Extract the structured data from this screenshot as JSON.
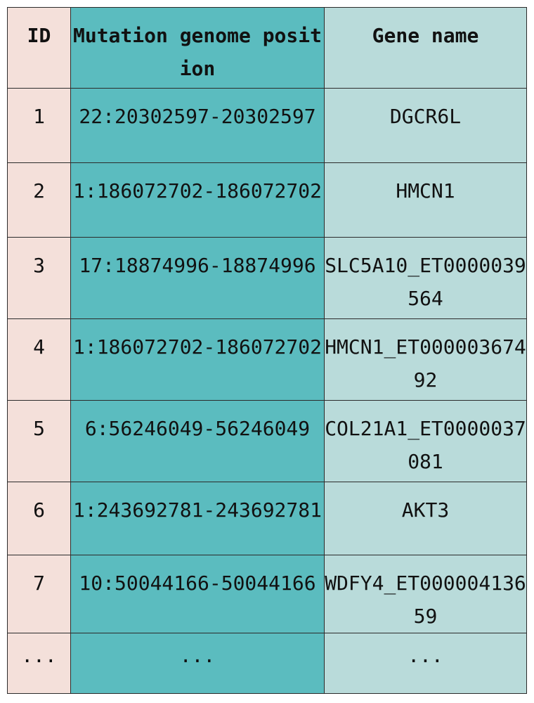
{
  "table": {
    "headers": {
      "id": "ID",
      "position": "Mutation genome position",
      "gene": "Gene name"
    },
    "rows": [
      {
        "id": "1",
        "position": "22:20302597-20302597",
        "gene": "DGCR6L"
      },
      {
        "id": "2",
        "position": "1:186072702-186072702",
        "gene": "HMCN1"
      },
      {
        "id": "3",
        "position": "17:18874996-18874996",
        "gene": "SLC5A10_ET0000039564"
      },
      {
        "id": "4",
        "position": "1:186072702-186072702",
        "gene": "HMCN1_ET00000367492"
      },
      {
        "id": "5",
        "position": "6:56246049-56246049",
        "gene": "COL21A1_ET0000037081"
      },
      {
        "id": "6",
        "position": "1:243692781-243692781",
        "gene": "AKT3"
      },
      {
        "id": "7",
        "position": "10:50044166-50044166",
        "gene": "WDFY4_ET00000413659"
      },
      {
        "id": "...",
        "position": "...",
        "gene": "..."
      }
    ],
    "colors": {
      "id_column": "#f4e0da",
      "position_column": "#5bbcbf",
      "gene_column": "#b9dbda",
      "border": "#2b2b2b"
    }
  }
}
